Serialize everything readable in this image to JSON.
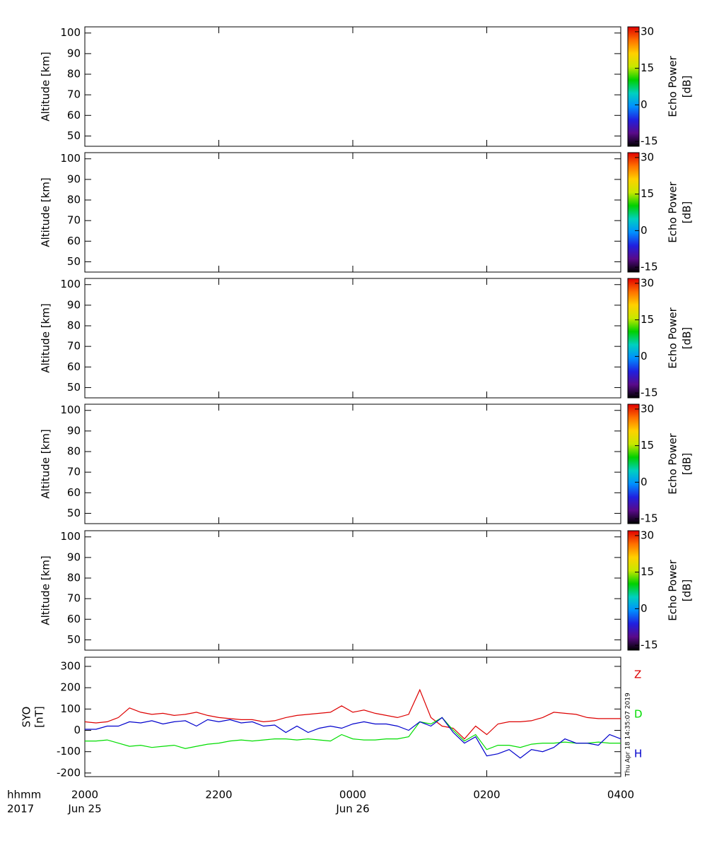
{
  "chart_data": [
    {
      "type": "heatmap",
      "ylabel": "Altitude [km]",
      "ylim": [
        45,
        103
      ],
      "yticks": [
        50,
        60,
        70,
        80,
        90,
        100
      ],
      "colorbar": {
        "label": [
          "Echo Power",
          "[dB]"
        ],
        "lim": [
          -17,
          32
        ],
        "ticks": [
          -15,
          0,
          15,
          30
        ],
        "colormap": "rainbow"
      }
    },
    {
      "type": "heatmap",
      "ylabel": "Altitude [km]",
      "ylim": [
        45,
        103
      ],
      "yticks": [
        50,
        60,
        70,
        80,
        90,
        100
      ],
      "colorbar": {
        "label": [
          "Echo Power",
          "[dB]"
        ],
        "lim": [
          -17,
          32
        ],
        "ticks": [
          -15,
          0,
          15,
          30
        ],
        "colormap": "rainbow"
      }
    },
    {
      "type": "heatmap",
      "ylabel": "Altitude [km]",
      "ylim": [
        45,
        103
      ],
      "yticks": [
        50,
        60,
        70,
        80,
        90,
        100
      ],
      "colorbar": {
        "label": [
          "Echo Power",
          "[dB]"
        ],
        "lim": [
          -17,
          32
        ],
        "ticks": [
          -15,
          0,
          15,
          30
        ],
        "colormap": "rainbow"
      }
    },
    {
      "type": "heatmap",
      "ylabel": "Altitude [km]",
      "ylim": [
        45,
        103
      ],
      "yticks": [
        50,
        60,
        70,
        80,
        90,
        100
      ],
      "colorbar": {
        "label": [
          "Echo Power",
          "[dB]"
        ],
        "lim": [
          -17,
          32
        ],
        "ticks": [
          -15,
          0,
          15,
          30
        ],
        "colormap": "rainbow"
      }
    },
    {
      "type": "heatmap",
      "ylabel": "Altitude [km]",
      "ylim": [
        45,
        103
      ],
      "yticks": [
        50,
        60,
        70,
        80,
        90,
        100
      ],
      "colorbar": {
        "label": [
          "Echo Power",
          "[dB]"
        ],
        "lim": [
          -17,
          32
        ],
        "ticks": [
          -15,
          0,
          15,
          30
        ],
        "colormap": "rainbow"
      }
    },
    {
      "type": "line",
      "ylabel": [
        "SYO",
        "[nT]"
      ],
      "ylim": [
        -217,
        343
      ],
      "yticks": [
        -200,
        -100,
        0,
        100,
        200,
        300
      ],
      "xlabel": "hhmm",
      "year": "2017",
      "timestamp": "Thu Apr 18 14:35:07 2019",
      "xlim": [
        0,
        480
      ],
      "xticks": [
        {
          "value": 0,
          "label": "2000"
        },
        {
          "value": 120,
          "label": "2200"
        },
        {
          "value": 240,
          "label": "0000"
        },
        {
          "value": 360,
          "label": "0200"
        },
        {
          "value": 480,
          "label": "0400"
        }
      ],
      "date_labels": [
        {
          "value": 0,
          "label": "Jun 25"
        },
        {
          "value": 240,
          "label": "Jun 26"
        }
      ],
      "x": [
        0,
        10,
        20,
        30,
        40,
        50,
        60,
        70,
        80,
        90,
        100,
        110,
        120,
        130,
        140,
        150,
        160,
        170,
        180,
        190,
        200,
        210,
        220,
        230,
        240,
        250,
        260,
        270,
        280,
        290,
        300,
        310,
        320,
        330,
        340,
        350,
        360,
        370,
        380,
        390,
        400,
        410,
        420,
        430,
        440,
        450,
        460,
        470,
        480
      ],
      "series": [
        {
          "name": "Z",
          "color": "#dd0000",
          "values": [
            40,
            35,
            40,
            60,
            105,
            85,
            75,
            80,
            70,
            75,
            85,
            70,
            60,
            55,
            50,
            50,
            40,
            45,
            60,
            70,
            75,
            80,
            85,
            115,
            85,
            95,
            80,
            70,
            60,
            75,
            190,
            60,
            20,
            10,
            -40,
            20,
            -20,
            30,
            40,
            40,
            45,
            60,
            85,
            80,
            75,
            60,
            55,
            55,
            55
          ]
        },
        {
          "name": "D",
          "color": "#00dd00",
          "values": [
            -50,
            -50,
            -45,
            -60,
            -75,
            -70,
            -80,
            -75,
            -70,
            -85,
            -75,
            -65,
            -60,
            -50,
            -45,
            -50,
            -45,
            -40,
            -40,
            -45,
            -40,
            -45,
            -50,
            -20,
            -40,
            -45,
            -45,
            -40,
            -40,
            -30,
            40,
            30,
            60,
            0,
            -50,
            -20,
            -90,
            -70,
            -70,
            -80,
            -65,
            -60,
            -60,
            -55,
            -60,
            -60,
            -55,
            -60,
            -60
          ]
        },
        {
          "name": "H",
          "color": "#0000cc",
          "values": [
            5,
            5,
            20,
            20,
            40,
            35,
            45,
            30,
            40,
            45,
            20,
            50,
            40,
            50,
            35,
            40,
            20,
            25,
            -10,
            20,
            -10,
            10,
            20,
            10,
            30,
            40,
            30,
            30,
            20,
            0,
            40,
            20,
            60,
            -10,
            -60,
            -30,
            -120,
            -110,
            -90,
            -130,
            -90,
            -100,
            -80,
            -40,
            -60,
            -60,
            -70,
            -20,
            -40
          ]
        }
      ]
    }
  ]
}
